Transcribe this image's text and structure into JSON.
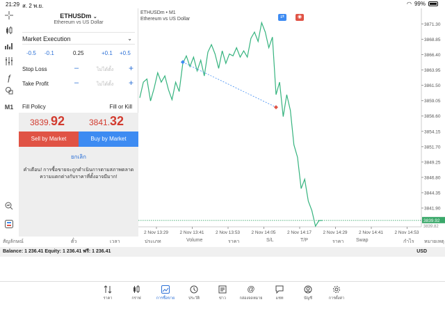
{
  "status_bar": {
    "time": "21:29",
    "date": "ส. 2 พ.ย.",
    "battery": "99%"
  },
  "order_panel": {
    "symbol": "ETHUSDm",
    "description": "Ethereum vs US Dollar",
    "execution": "Market Execution",
    "volume": {
      "dec2": "-0.5",
      "dec1": "-0.1",
      "value": "0.25",
      "inc1": "+0.1",
      "inc2": "+0.5"
    },
    "stop_loss": {
      "label": "Stop Loss",
      "placeholder": "ไม่ได้ตั้ง"
    },
    "take_profit": {
      "label": "Take Profit",
      "placeholder": "ไม่ได้ตั้ง"
    },
    "fill_policy": {
      "label": "Fill Policy",
      "value": "Fill or Kill"
    },
    "sell_price": {
      "main": "3839.",
      "big": "92"
    },
    "buy_price": {
      "main": "3841.",
      "big": "32"
    },
    "sell_button": "Sell by Market",
    "buy_button": "Buy by Market",
    "cancel": "ยกเลิก",
    "warning": "คำเตือน! การซื้อขายจะถูกดำเนินการตามสภาพตลาด ความแตกต่างกับราคาที่ตั้งอาจมีมาก!"
  },
  "chart_header": {
    "symbol": "ETHUSDm • M1",
    "description": "Ethereum vs US Dollar"
  },
  "colors": {
    "line": "#35b37e",
    "sell": "#e05345",
    "buy": "#3d8bf2",
    "price_tag": "#3aa86a"
  },
  "chart_data": {
    "type": "line",
    "y_ticks": [
      "3871.30",
      "3868.85",
      "3866.40",
      "3863.95",
      "3861.50",
      "3859.05",
      "3856.60",
      "3854.15",
      "3851.70",
      "3849.25",
      "3846.80",
      "3844.35",
      "3841.90"
    ],
    "x_ticks": [
      "2 Nov 13:29",
      "2 Nov 13:41",
      "2 Nov 13:53",
      "2 Nov 14:05",
      "2 Nov 14:17",
      "2 Nov 14:29",
      "2 Nov 14:41",
      "2 Nov 14:53"
    ],
    "ylim": [
      3838.9,
      3872.9
    ],
    "current_price_label": "3839.92",
    "secondary_price_label": "3839.82",
    "series": [
      {
        "values": [
          3859.5,
          3862.0,
          3862.5,
          3859.0,
          3861.0,
          3863.5,
          3862.0,
          3863.0,
          3860.8,
          3859.2,
          3862.0,
          3860.5,
          3865.0,
          3866.2,
          3864.5,
          3866.0,
          3863.8,
          3865.5,
          3863.0,
          3866.8,
          3868.0,
          3866.5,
          3864.2,
          3867.0,
          3865.0,
          3866.5,
          3866.2,
          3867.5,
          3866.0,
          3867.0,
          3866.0,
          3869.0,
          3870.0,
          3868.5,
          3871.5,
          3870.0,
          3867.5,
          3869.2,
          3860.0,
          3862.0,
          3856.5,
          3860.0,
          3857.5,
          3852.0,
          3850.0,
          3845.0,
          3846.5,
          3843.0,
          3841.5,
          3839.0,
          3839.9,
          3839.92
        ],
        "trade_markers": [
          {
            "index": 12,
            "price": 3865.2,
            "side": "buy"
          },
          {
            "index": 38,
            "price": 3858.0,
            "side": "sell"
          }
        ]
      }
    ]
  },
  "table_headers": [
    "สัญลักษณ์",
    "ตั๋ว",
    "เวลา",
    "ประเภท",
    "Volume",
    "ราคา",
    "S/L",
    "T/P",
    "ราคา",
    "Swap",
    "กำไร",
    "หมายเหตุ"
  ],
  "balance": {
    "text": "Balance: 1 236.41 Equity: 1 236.41 ฟรี: 1 236.41",
    "currency": "USD"
  },
  "tabs": [
    {
      "label": "ราคา",
      "icon": "quotes-icon"
    },
    {
      "label": "กราฟ",
      "icon": "chart-icon"
    },
    {
      "label": "การซื้อขาย",
      "icon": "trade-icon",
      "active": true
    },
    {
      "label": "ประวัติ",
      "icon": "history-icon"
    },
    {
      "label": "ข่าว",
      "icon": "news-icon"
    },
    {
      "label": "กล่องจดหมาย",
      "icon": "mail-icon"
    },
    {
      "label": "แชท",
      "icon": "chat-icon"
    },
    {
      "label": "บัญชี",
      "icon": "account-icon"
    },
    {
      "label": "การตั้งค่า",
      "icon": "settings-icon"
    }
  ]
}
